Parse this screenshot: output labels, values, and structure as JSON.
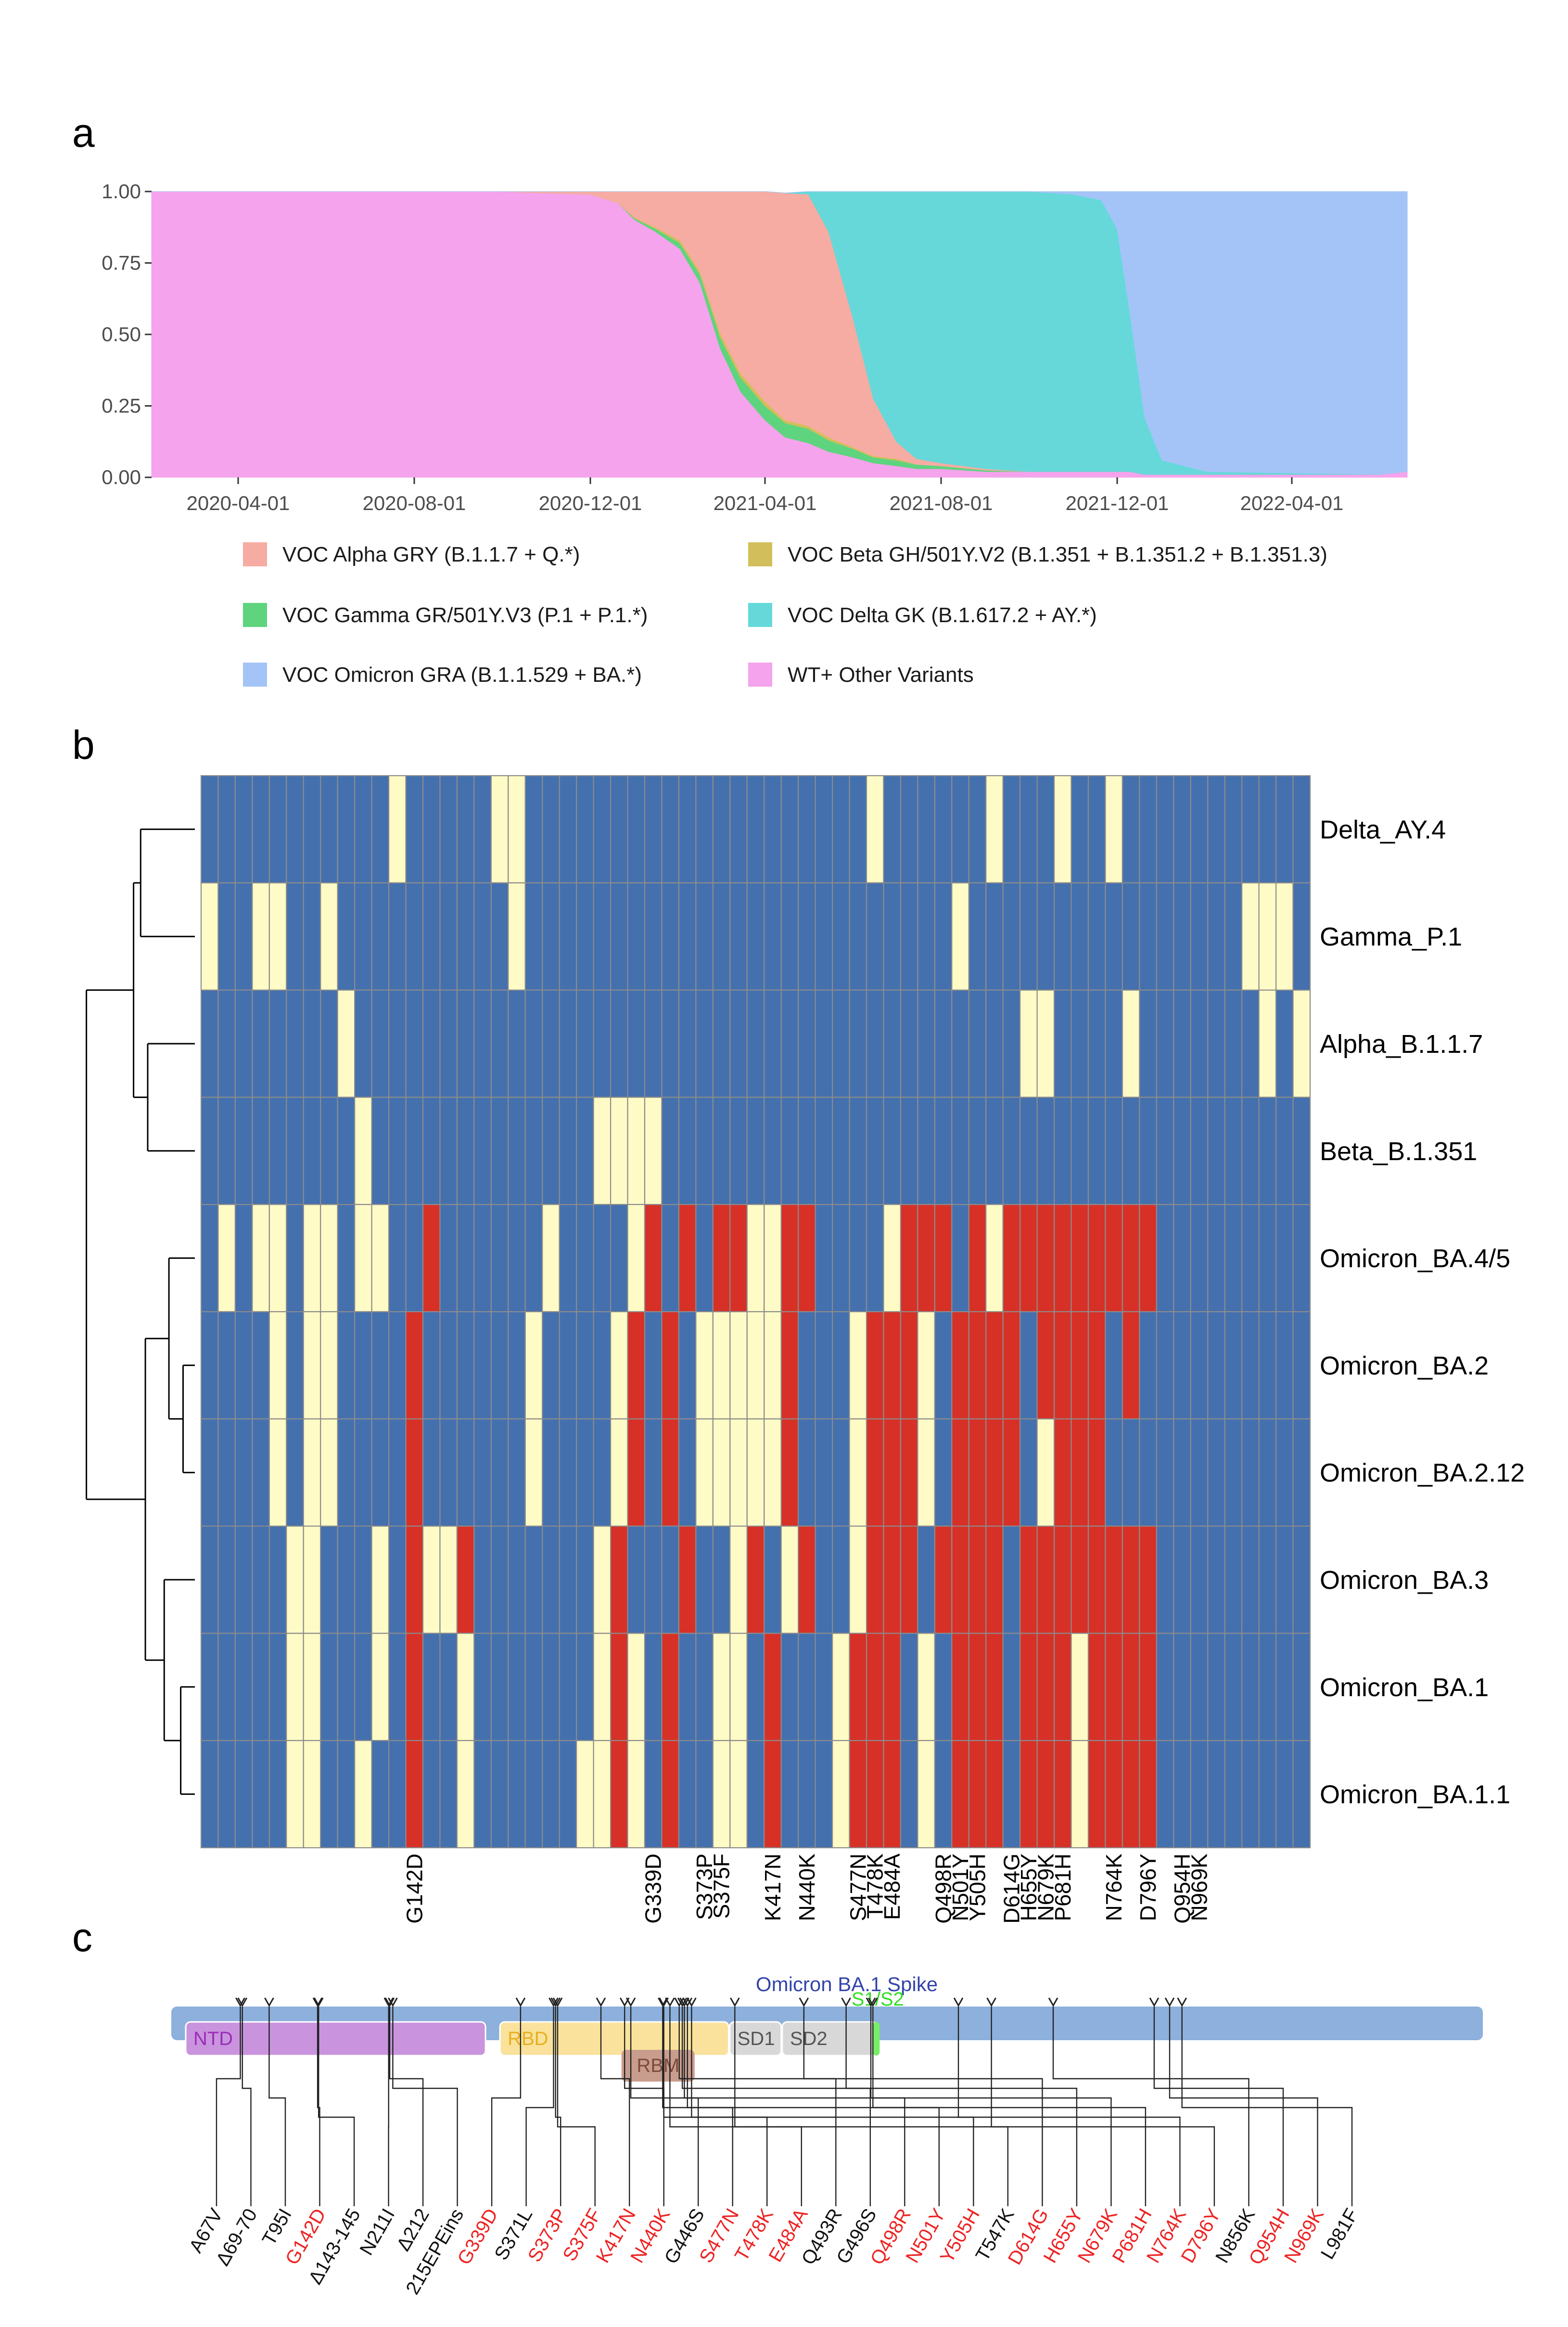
{
  "panels": {
    "a": "a",
    "b": "b",
    "c": "c"
  },
  "chart_data": [
    {
      "type": "area",
      "title": "",
      "xlabel": "",
      "ylabel": "",
      "stacked": true,
      "ylim": [
        0,
        1
      ],
      "y_ticks": [
        "0.00",
        "0.25",
        "0.50",
        "0.75",
        "1.00"
      ],
      "x_ticks": [
        "2020-04-01",
        "2020-08-01",
        "2020-12-01",
        "2021-04-01",
        "2021-08-01",
        "2021-12-01",
        "2022-04-01"
      ],
      "x": [
        "2020-02-01",
        "2020-04-01",
        "2020-06-01",
        "2020-08-01",
        "2020-10-01",
        "2020-12-01",
        "2020-12-20",
        "2021-01-01",
        "2021-01-15",
        "2021-02-01",
        "2021-02-15",
        "2021-03-01",
        "2021-03-15",
        "2021-04-01",
        "2021-04-15",
        "2021-05-01",
        "2021-05-15",
        "2021-06-01",
        "2021-06-15",
        "2021-07-01",
        "2021-07-15",
        "2021-08-01",
        "2021-09-01",
        "2021-10-01",
        "2021-11-01",
        "2021-11-20",
        "2021-12-01",
        "2021-12-10",
        "2021-12-20",
        "2022-01-01",
        "2022-02-01",
        "2022-04-01",
        "2022-06-01",
        "2022-06-20"
      ],
      "series": [
        {
          "name": "WT+ Other Variants",
          "color": "#F5A3EC",
          "values": [
            1.0,
            1.0,
            1.0,
            1.0,
            1.0,
            0.99,
            0.96,
            0.9,
            0.86,
            0.8,
            0.68,
            0.45,
            0.3,
            0.2,
            0.14,
            0.12,
            0.09,
            0.07,
            0.05,
            0.04,
            0.03,
            0.03,
            0.02,
            0.02,
            0.02,
            0.02,
            0.02,
            0.02,
            0.01,
            0.01,
            0.01,
            0.01,
            0.01,
            0.02
          ]
        },
        {
          "name": "VOC Gamma GR/501Y.V3 (P.1 + P.1.*)",
          "color": "#5ED47F",
          "values": [
            0,
            0,
            0,
            0,
            0,
            0,
            0,
            0.005,
            0.01,
            0.02,
            0.03,
            0.04,
            0.05,
            0.05,
            0.05,
            0.05,
            0.04,
            0.03,
            0.02,
            0.02,
            0.015,
            0.01,
            0.005,
            0,
            0,
            0,
            0,
            0,
            0,
            0,
            0,
            0,
            0,
            0
          ]
        },
        {
          "name": "VOC Beta GH/501Y.V2 (B.1.351 + B.1.351.2 + B.1.351.3)",
          "color": "#D2BE5A",
          "values": [
            0,
            0,
            0,
            0,
            0,
            0,
            0,
            0.003,
            0.005,
            0.01,
            0.01,
            0.015,
            0.015,
            0.015,
            0.01,
            0.01,
            0.01,
            0.005,
            0.005,
            0.005,
            0,
            0,
            0,
            0,
            0,
            0,
            0,
            0,
            0,
            0,
            0,
            0,
            0,
            0
          ]
        },
        {
          "name": "VOC Alpha GRY (B.1.1.7 + Q.*)",
          "color": "#F6ACA2",
          "values": [
            0,
            0,
            0,
            0,
            0,
            0.01,
            0.04,
            0.092,
            0.125,
            0.17,
            0.28,
            0.495,
            0.635,
            0.735,
            0.795,
            0.81,
            0.72,
            0.45,
            0.2,
            0.06,
            0.02,
            0.01,
            0.005,
            0,
            0,
            0,
            0,
            0,
            0,
            0,
            0,
            0,
            0,
            0
          ]
        },
        {
          "name": "VOC Delta GK (B.1.617.2 + AY.*)",
          "color": "#66D8DA",
          "values": [
            0,
            0,
            0,
            0,
            0,
            0,
            0,
            0,
            0,
            0,
            0,
            0,
            0,
            0,
            0,
            0.01,
            0.14,
            0.445,
            0.725,
            0.875,
            0.935,
            0.96,
            0.975,
            0.98,
            0.97,
            0.95,
            0.85,
            0.55,
            0.2,
            0.05,
            0.01,
            0.005,
            0,
            0
          ]
        },
        {
          "name": "VOC Omicron GRA (B.1.1.529 + BA.*)",
          "color": "#A4C4F8",
          "values": [
            0,
            0,
            0,
            0,
            0,
            0,
            0,
            0,
            0,
            0,
            0,
            0,
            0,
            0,
            0,
            0,
            0,
            0,
            0,
            0,
            0,
            0,
            0,
            0,
            0.01,
            0.03,
            0.13,
            0.43,
            0.79,
            0.94,
            0.98,
            0.985,
            0.99,
            0.98
          ]
        }
      ],
      "legend": [
        {
          "label": "VOC Alpha GRY (B.1.1.7 + Q.*)",
          "color": "#F6ACA2"
        },
        {
          "label": "VOC Beta GH/501Y.V2 (B.1.351 + B.1.351.2 + B.1.351.3)",
          "color": "#D2BE5A"
        },
        {
          "label": "VOC Gamma GR/501Y.V3 (P.1 + P.1.*)",
          "color": "#5ED47F"
        },
        {
          "label": "VOC Delta GK (B.1.617.2 + AY.*)",
          "color": "#66D8DA"
        },
        {
          "label": "VOC Omicron GRA (B.1.1.529 + BA.*)",
          "color": "#A4C4F8"
        },
        {
          "label": "WT+ Other Variants",
          "color": "#F5A3EC"
        }
      ]
    },
    {
      "type": "heatmap",
      "title": "",
      "colors": {
        "0": "#4470AE",
        "1": "#FFFBC6",
        "2": "#D73027",
        "grid": "#8C8C8C"
      },
      "rows": [
        "Delta_AY.4",
        "Gamma_P.1",
        "Alpha_B.1.1.7",
        "Beta_B.1.351",
        "Omicron_BA.4/5",
        "Omicron_BA.2",
        "Omicron_BA.2.12",
        "Omicron_BA.3",
        "Omicron_BA.1",
        "Omicron_BA.1.1"
      ],
      "n_cols": 65,
      "labeled_columns": [
        {
          "index": 12,
          "label": "G142D"
        },
        {
          "index": 26,
          "label": "G339D"
        },
        {
          "index": 29,
          "label": "S373P"
        },
        {
          "index": 30,
          "label": "S375F"
        },
        {
          "index": 33,
          "label": "K417N"
        },
        {
          "index": 35,
          "label": "N440K"
        },
        {
          "index": 38,
          "label": "S477N"
        },
        {
          "index": 39,
          "label": "T478K"
        },
        {
          "index": 40,
          "label": "E484A"
        },
        {
          "index": 43,
          "label": "Q498R"
        },
        {
          "index": 44,
          "label": "N501Y"
        },
        {
          "index": 45,
          "label": "Y505H"
        },
        {
          "index": 47,
          "label": "D614G"
        },
        {
          "index": 48,
          "label": "H655Y"
        },
        {
          "index": 49,
          "label": "N679K"
        },
        {
          "index": 50,
          "label": "P681H"
        },
        {
          "index": 53,
          "label": "N764K"
        },
        {
          "index": 55,
          "label": "D796Y"
        },
        {
          "index": 57,
          "label": "Q954H"
        },
        {
          "index": 58,
          "label": "N969K"
        }
      ],
      "matrix": [
        "00000000000100000110000000000000000000010000001000100100000000000",
        "10011001000000000010000000000000000000000000100000000000000001110",
        "00000000100000000000000000000000000000000000000011000010000000101",
        "00000000010000000000000111100000000000000000000000000000000000000",
        "01011011011002000000100001202022112200001222021222222222000000000",
        "00001011000020000001000012020111112000122210222202222020000000000",
        "00001011000020000001000012020111112000122210222201222000000000000",
        "00000110001021120000000120002001201200122202222022222222000000000",
        "00000110001020010000000121020011020001222010222022212222000000000",
        "00000110010020010000001121020011020001222010222022212222000000000"
      ],
      "dendrogram_merges": [
        {
          "a": "Omicron_BA.2",
          "b": "Omicron_BA.2.12",
          "height": 0.1
        },
        {
          "a": "Omicron_BA.1",
          "b": "Omicron_BA.1.1",
          "height": 0.12
        },
        {
          "a": "Omicron_BA.4/5",
          "b": "Omicron_BA.2/BA.2.12",
          "height": 0.22
        },
        {
          "a": "Omicron_BA.3",
          "b": "Omicron_BA.1/BA.1.1",
          "height": 0.26
        },
        {
          "a": "Omicron_BA.4/5/BA.2/BA.2.12",
          "b": "Omicron_BA.3/BA.1/BA.1.1",
          "height": 0.42
        },
        {
          "a": "Alpha_B.1.1.7",
          "b": "Beta_B.1.351",
          "height": 0.4
        },
        {
          "a": "Delta_AY.4",
          "b": "Gamma_P.1",
          "height": 0.46
        },
        {
          "a": "Delta/Gamma",
          "b": "Alpha/Beta",
          "height": 0.52
        },
        {
          "a": "Non-Omicron",
          "b": "Omicron",
          "height": 0.92
        }
      ]
    },
    {
      "type": "diagram",
      "title": "Omicron BA.1 Spike",
      "domains": [
        {
          "name": "NTD",
          "start": 14,
          "end": 305,
          "color": "#C994DD",
          "text_color": "#9A2DB8",
          "track": "lower"
        },
        {
          "name": "RBD",
          "start": 319,
          "end": 541,
          "color": "#FAE29C",
          "text_color": "#E8B020",
          "track": "lower"
        },
        {
          "name": "RBM",
          "start": 437,
          "end": 508,
          "color": "#C89D8E",
          "text_color": "#7D4A3A",
          "track": "inner"
        },
        {
          "name": "SD1",
          "start": 542,
          "end": 592,
          "color": "#D8D8D8",
          "text_color": "#555555",
          "track": "lower"
        },
        {
          "name": "SD2",
          "start": 593,
          "end": 685,
          "color": "#D8D8D8",
          "text_color": "#555555",
          "track": "lower"
        },
        {
          "name": "S1/S2",
          "start": 681,
          "end": 687,
          "color": "#77EE66",
          "text_color": "#33DD22",
          "track": "lower"
        }
      ],
      "protein_length": 1273,
      "mutations": [
        {
          "label": "A67V",
          "pos": 67,
          "shared": false
        },
        {
          "label": "Δ69-70",
          "pos": 69,
          "shared": false
        },
        {
          "label": "T95I",
          "pos": 95,
          "shared": false
        },
        {
          "label": "G142D",
          "pos": 142,
          "shared": true
        },
        {
          "label": "Δ143-145",
          "pos": 143,
          "shared": false
        },
        {
          "label": "N211I",
          "pos": 211,
          "shared": false
        },
        {
          "label": "Δ212",
          "pos": 212,
          "shared": false
        },
        {
          "label": "215EPEins",
          "pos": 215,
          "shared": false
        },
        {
          "label": "G339D",
          "pos": 339,
          "shared": true
        },
        {
          "label": "S371L",
          "pos": 371,
          "shared": false
        },
        {
          "label": "S373P",
          "pos": 373,
          "shared": true
        },
        {
          "label": "S375F",
          "pos": 375,
          "shared": true
        },
        {
          "label": "K417N",
          "pos": 417,
          "shared": true
        },
        {
          "label": "N440K",
          "pos": 440,
          "shared": true
        },
        {
          "label": "G446S",
          "pos": 446,
          "shared": false
        },
        {
          "label": "S477N",
          "pos": 477,
          "shared": true
        },
        {
          "label": "T478K",
          "pos": 478,
          "shared": true
        },
        {
          "label": "E484A",
          "pos": 484,
          "shared": true
        },
        {
          "label": "Q493R",
          "pos": 493,
          "shared": false
        },
        {
          "label": "G496S",
          "pos": 496,
          "shared": false
        },
        {
          "label": "Q498R",
          "pos": 498,
          "shared": true
        },
        {
          "label": "N501Y",
          "pos": 501,
          "shared": true
        },
        {
          "label": "Y505H",
          "pos": 505,
          "shared": true
        },
        {
          "label": "T547K",
          "pos": 547,
          "shared": false
        },
        {
          "label": "D614G",
          "pos": 614,
          "shared": true
        },
        {
          "label": "H655Y",
          "pos": 655,
          "shared": true
        },
        {
          "label": "N679K",
          "pos": 679,
          "shared": true
        },
        {
          "label": "P681H",
          "pos": 681,
          "shared": true
        },
        {
          "label": "N764K",
          "pos": 764,
          "shared": true
        },
        {
          "label": "D796Y",
          "pos": 796,
          "shared": true
        },
        {
          "label": "N856K",
          "pos": 856,
          "shared": false
        },
        {
          "label": "Q954H",
          "pos": 954,
          "shared": true
        },
        {
          "label": "N969K",
          "pos": 969,
          "shared": true
        },
        {
          "label": "L981F",
          "pos": 981,
          "shared": false
        }
      ],
      "colors": {
        "shared": "#EE2222",
        "unique": "#111111",
        "backbone": "#8DB0DC",
        "stem": "#222222"
      }
    }
  ]
}
